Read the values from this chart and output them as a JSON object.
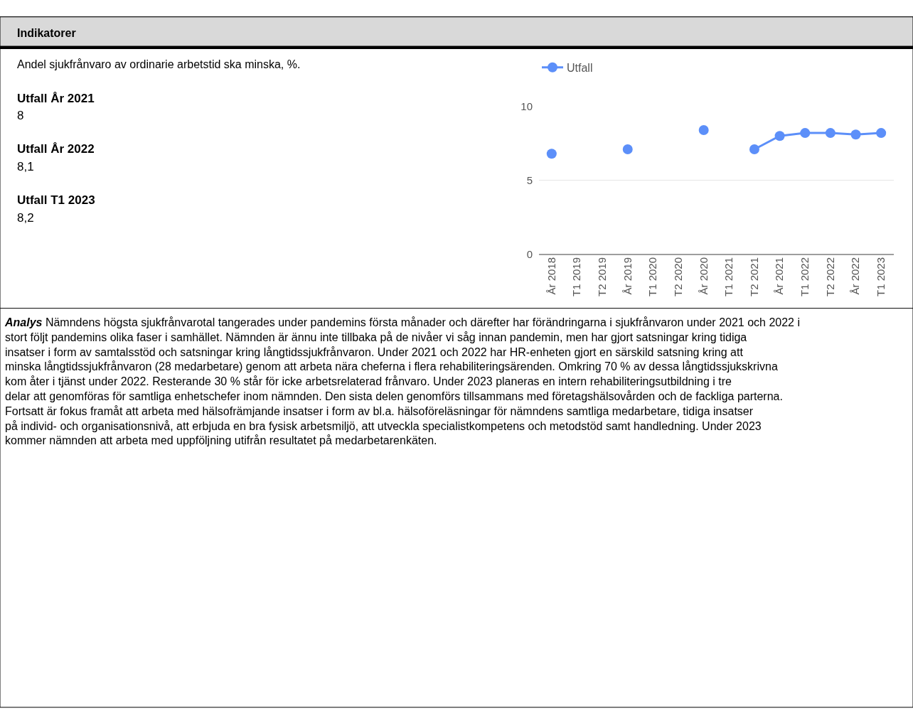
{
  "chart_data": {
    "type": "line",
    "title": "Indikatorer",
    "subtitle": "Andel sjukfrånvaro av ordinarie arbetstid ska minska, %.",
    "categories": [
      "År 2018",
      "T1 2019",
      "T2 2019",
      "År 2019",
      "T1 2020",
      "T2 2020",
      "År 2020",
      "T1 2021",
      "T2 2021",
      "År 2021",
      "T1 2022",
      "T2 2022",
      "År 2022",
      "T1 2023"
    ],
    "series": [
      {
        "name": "Utfall",
        "color": "#5c8ff9",
        "values": [
          6.8,
          null,
          null,
          7.1,
          null,
          null,
          8.4,
          null,
          7.1,
          8.0,
          8.2,
          8.2,
          8.1,
          8.2
        ]
      }
    ],
    "ylim": [
      0,
      10
    ],
    "yticks": [
      0,
      5,
      10
    ],
    "grid": "y",
    "legend": "top left",
    "marker": "circle",
    "line_style": "solid",
    "annotations": [
      "Utfall År 2021",
      "8",
      "Utfall År 2022",
      "8,1",
      "Utfall T1 2023",
      "8,2",
      "Analys Nämndens högsta sjukfrånvarotal tangerades under pandemins första månader och därefter har förändringarna i sjukfrånvaron under 2021 och 2022 i stort följt pandemins olika faser i samhället. Nämnden är ännu inte tillbaka på de nivåer vi såg innan pandemin, men har gjort satsningar kring tidiga insatser i form av samtalsstöd och satsningar kring långtidssjukfrånvaron. Under 2021 och 2022 har HR-enheten gjort en särskild satsning kring att minska långtidssjukfrånvaron (28 medarbetare) genom att arbeta nära cheferna i flera rehabiliteringsärenden. Omkring 70 % av dessa långtidssjukskrivna kom åter i tjänst under 2022. Resterande 30 % står för icke arbetsrelaterad frånvaro. Under 2023 planeras en intern rehabiliteringsutbildning i tre delar att genomföras för samtliga enhetschefer inom nämnden. Den sista delen genomförs tillsammans med företagshälsovården och de fackliga parterna.",
      "Fortsatt är fokus framåt att arbeta med hälsofrämjande insatser i form av bl.a. hälsoföreläsningar för nämndens samtliga medarbetare, tidiga insatser på individ- och organisationsnivå, att erbjuda en bra fysisk arbetsmiljö, att utveckla specialistkompetens och metodstöd samt handledning. Under 2023 kommer nämnden att arbeta med uppföljning utifrån resultatet på medarbetarenkäten."
    ]
  }
}
